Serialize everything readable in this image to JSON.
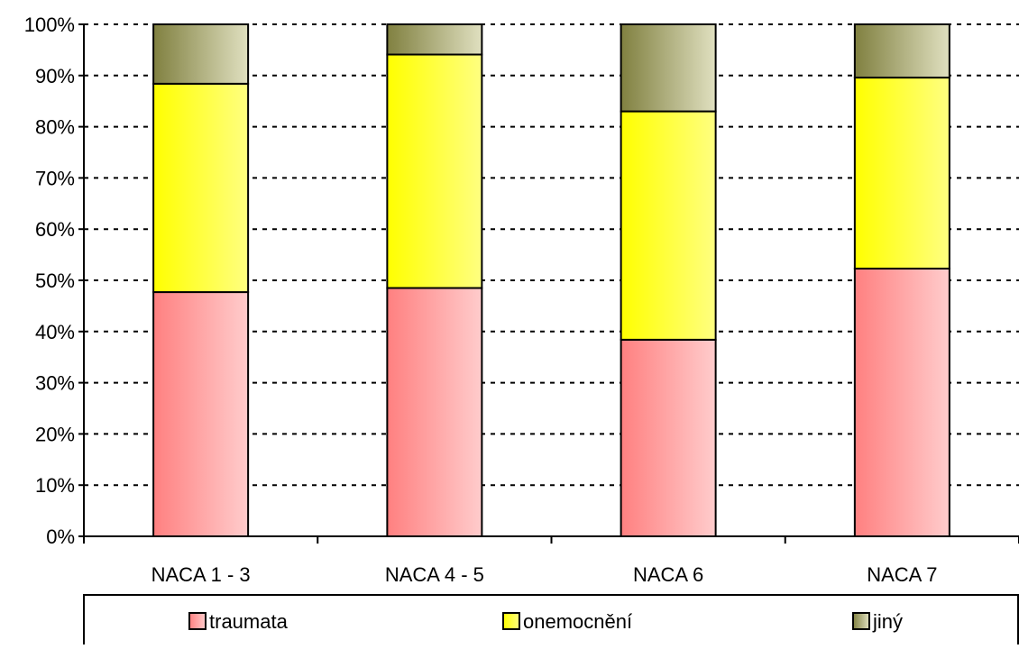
{
  "chart_data": {
    "type": "bar",
    "stacked": true,
    "percent_scale": true,
    "categories": [
      "NACA 1 - 3",
      "NACA 4 - 5",
      "NACA 6",
      "NACA 7"
    ],
    "series": [
      {
        "name": "traumata",
        "values": [
          47.7,
          48.5,
          38.4,
          52.3
        ],
        "color": "#ff8080",
        "color_light": "#ffcccc"
      },
      {
        "name": "onemocnění",
        "values": [
          40.7,
          45.6,
          44.6,
          37.3
        ],
        "color": "#ffff00",
        "color_light": "#ffff80"
      },
      {
        "name": "jiný",
        "values": [
          11.6,
          5.9,
          17.0,
          10.4
        ],
        "color": "#808040",
        "color_light": "#e0e0c0"
      }
    ],
    "ylim": [
      0,
      100
    ],
    "yticks": [
      "0%",
      "10%",
      "20%",
      "30%",
      "40%",
      "50%",
      "60%",
      "70%",
      "80%",
      "90%",
      "100%"
    ],
    "grid": true,
    "grid_style": "dotted",
    "legend_position": "bottom"
  }
}
